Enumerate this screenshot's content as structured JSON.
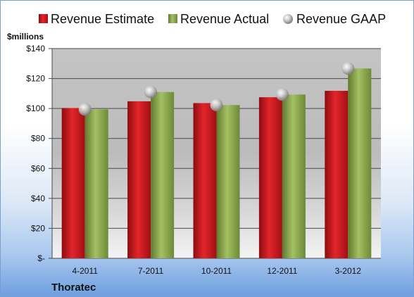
{
  "chart_data": {
    "type": "bar",
    "y_unit_label": "$millions",
    "categories": [
      "4-2011",
      "7-2011",
      "10-2011",
      "12-2011",
      "3-2012"
    ],
    "series": [
      {
        "name": "Revenue Estimate",
        "kind": "bar",
        "color": "#c8161b",
        "values": [
          100.3,
          104.8,
          103.6,
          107.5,
          111.8
        ]
      },
      {
        "name": "Revenue Actual",
        "kind": "bar",
        "color": "#8aa84c",
        "values": [
          99.4,
          111.0,
          102.3,
          109.3,
          126.7
        ]
      },
      {
        "name": "Revenue GAAP",
        "kind": "marker",
        "color": "#b8b8b8",
        "values": [
          99.4,
          111.0,
          102.3,
          109.3,
          126.7
        ]
      }
    ],
    "ylim": [
      0,
      140
    ],
    "y_ticks": [
      0,
      20,
      40,
      60,
      80,
      100,
      120,
      140
    ],
    "y_tick_labels": [
      "$-",
      "$20",
      "$40",
      "$60",
      "$80",
      "$100",
      "$120",
      "$140"
    ],
    "grid": true,
    "legend_position": "top",
    "plot_background": "gradient-gray"
  },
  "company": "Thoratec"
}
